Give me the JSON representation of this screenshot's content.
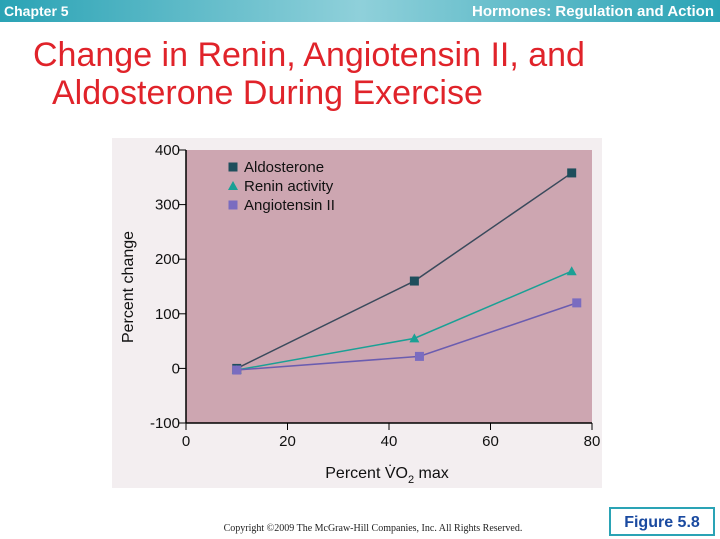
{
  "header": {
    "chapter": "Chapter 5",
    "topic": "Hormones: Regulation and Action"
  },
  "title_lines": [
    "Change in Renin, Angiotensin II, and",
    "Aldosterone During Exercise"
  ],
  "chart_data": {
    "type": "line",
    "ylabel": "Percent change",
    "xlabel": {
      "text": "Percent V̇O",
      "sub": "2",
      "suffix": " max"
    },
    "xlim": [
      0,
      80
    ],
    "xticks": [
      0,
      20,
      40,
      60,
      80
    ],
    "ylim": [
      -100,
      400
    ],
    "yticks": [
      -100,
      0,
      100,
      200,
      300,
      400
    ],
    "background": "#cda6b1",
    "series": [
      {
        "name": "Aldosterone",
        "color": "#1e4e5c",
        "line_color": "#3a4a5c",
        "marker": "square",
        "x": [
          10,
          45,
          76
        ],
        "values": [
          0,
          160,
          358
        ]
      },
      {
        "name": "Renin activity",
        "color": "#1aa095",
        "line_color": "#1aa095",
        "marker": "triangle",
        "x": [
          10,
          45,
          76
        ],
        "values": [
          -3,
          55,
          178
        ]
      },
      {
        "name": "Angiotensin II",
        "color": "#7a6cc0",
        "line_color": "#6a5cb0",
        "marker": "square",
        "x": [
          10,
          46,
          77
        ],
        "values": [
          -3,
          22,
          120
        ]
      }
    ]
  },
  "copyright": "Copyright ©2009 The McGraw-Hill Companies, Inc. All Rights Reserved.",
  "figure_label": "Figure 5.8"
}
